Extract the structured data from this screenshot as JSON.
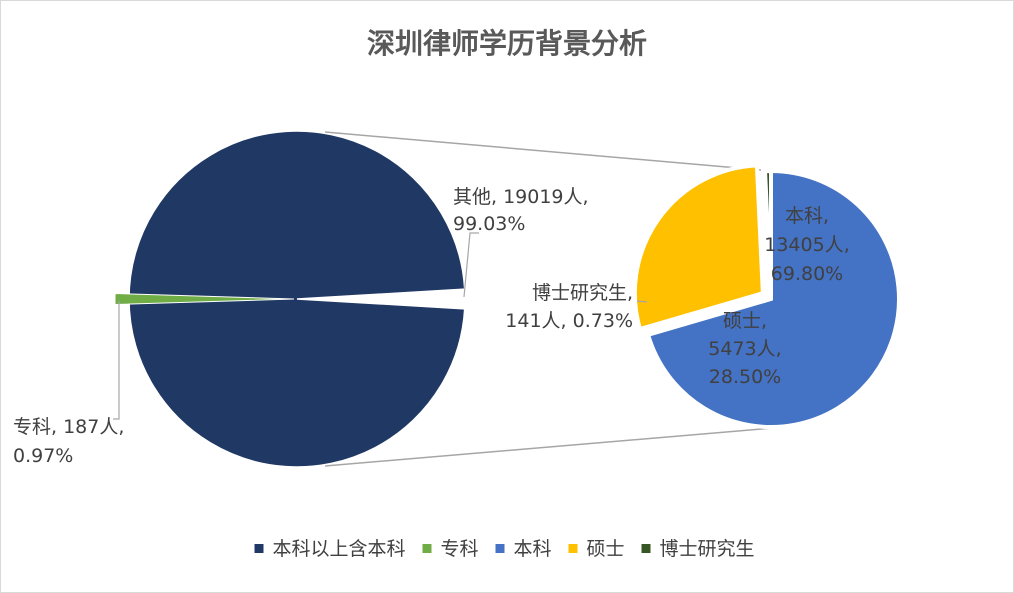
{
  "chart_data": {
    "type": "pie-of-pie",
    "title": "深圳律师学历背景分析",
    "primary_pie": {
      "slices": [
        {
          "key": "above_bachelor",
          "label_lines": [
            "其他, 19019人,",
            "99.03%"
          ],
          "value": 19019,
          "percent": 99.03,
          "color": "#203864"
        },
        {
          "key": "junior_college",
          "label_lines": [
            "专科, 187人,",
            "0.97%"
          ],
          "value": 187,
          "percent": 0.97,
          "color": "#70ad47"
        }
      ]
    },
    "secondary_pie": {
      "slices": [
        {
          "key": "bachelor",
          "label_lines": [
            "本科,",
            "13405人,",
            "69.80%"
          ],
          "value": 13405,
          "percent": 69.8,
          "color": "#4472c4"
        },
        {
          "key": "master",
          "label_lines": [
            "硕士,",
            "5473人,",
            "28.50%"
          ],
          "value": 5473,
          "percent": 28.5,
          "color": "#ffc000"
        },
        {
          "key": "phd",
          "label_lines": [
            "博士研究生,",
            "141人, 0.73%"
          ],
          "value": 141,
          "percent": 0.73,
          "color": "#375623"
        }
      ]
    },
    "legend": {
      "position": "bottom",
      "items": [
        {
          "label": "本科以上含本科",
          "color": "#203864"
        },
        {
          "label": "专科",
          "color": "#70ad47"
        },
        {
          "label": "本科",
          "color": "#4472c4"
        },
        {
          "label": "硕士",
          "color": "#ffc000"
        },
        {
          "label": "博士研究生",
          "color": "#375623"
        }
      ]
    }
  }
}
